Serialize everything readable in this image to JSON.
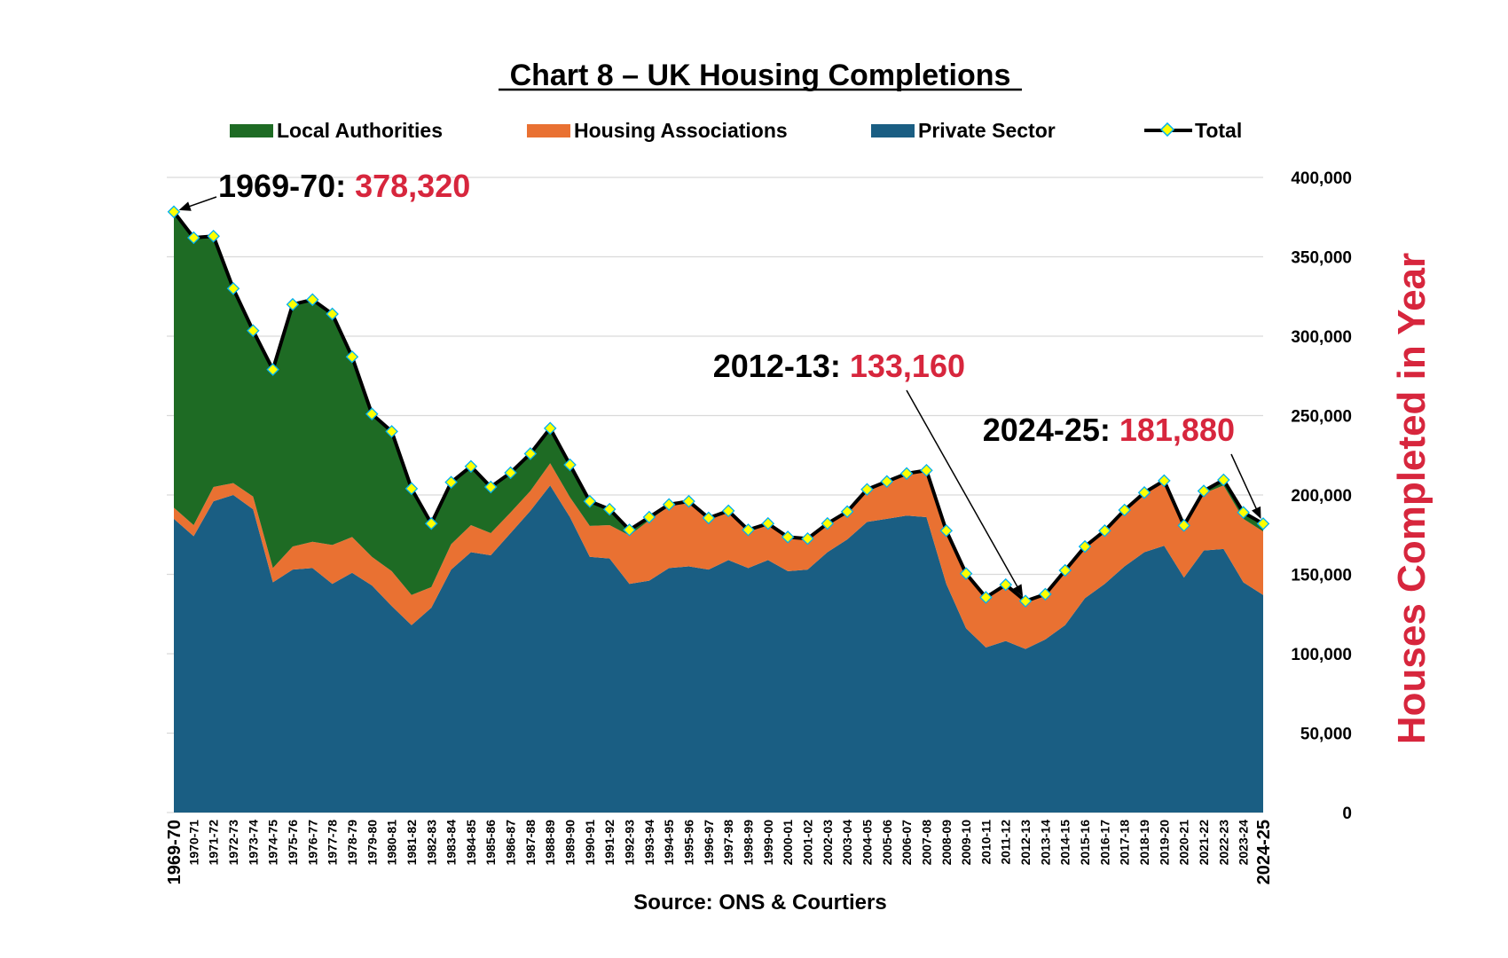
{
  "chart_data": {
    "type": "area",
    "title": "Chart 8 – UK Housing Completions",
    "source": "Source: ONS & Courtiers",
    "ylabel": "Houses Completed in Year",
    "ylim": [
      0,
      400000
    ],
    "yticks": [
      0,
      50000,
      100000,
      150000,
      200000,
      250000,
      300000,
      350000,
      400000
    ],
    "ytick_labels": [
      "0",
      "50,000",
      "100,000",
      "150,000",
      "200,000",
      "250,000",
      "300,000",
      "350,000",
      "400,000"
    ],
    "stacked": true,
    "grid": true,
    "legend_position": "top",
    "categories": [
      "1969-70",
      "1970-71",
      "1971-72",
      "1972-73",
      "1973-74",
      "1974-75",
      "1975-76",
      "1976-77",
      "1977-78",
      "1978-79",
      "1979-80",
      "1980-81",
      "1981-82",
      "1982-83",
      "1983-84",
      "1984-85",
      "1985-86",
      "1986-87",
      "1987-88",
      "1988-89",
      "1989-90",
      "1990-91",
      "1991-92",
      "1992-93",
      "1993-94",
      "1994-95",
      "1995-96",
      "1996-97",
      "1997-98",
      "1998-99",
      "1999-00",
      "2000-01",
      "2001-02",
      "2002-03",
      "2003-04",
      "2004-05",
      "2005-06",
      "2006-07",
      "2007-08",
      "2008-09",
      "2009-10",
      "2010-11",
      "2011-12",
      "2012-13",
      "2013-14",
      "2014-15",
      "2015-16",
      "2016-17",
      "2017-18",
      "2018-19",
      "2019-20",
      "2020-21",
      "2021-22",
      "2022-23",
      "2023-24",
      "2024-25"
    ],
    "series": [
      {
        "name": "Private Sector",
        "color": "#1a5e83",
        "values": [
          185000,
          174000,
          196000,
          200000,
          191000,
          145000,
          153000,
          154000,
          144000,
          151000,
          143000,
          130000,
          118000,
          129000,
          153000,
          164000,
          162000,
          176000,
          190000,
          206000,
          186000,
          161000,
          160000,
          144000,
          146000,
          154000,
          155000,
          153000,
          159000,
          154000,
          159000,
          152000,
          153000,
          164000,
          172000,
          183000,
          185000,
          187000,
          186000,
          144000,
          116000,
          104000,
          108000,
          103000,
          109000,
          118000,
          135000,
          144000,
          155000,
          164000,
          168000,
          148000,
          165000,
          166000,
          145000,
          137000
        ]
      },
      {
        "name": "Housing Associations",
        "color": "#e97132",
        "values": [
          7000,
          7000,
          9000,
          7500,
          8000,
          9000,
          14500,
          16500,
          24500,
          22500,
          18000,
          22000,
          19000,
          13000,
          16000,
          17000,
          14000,
          13000,
          12500,
          14000,
          12500,
          19500,
          21000,
          30500,
          38000,
          39000,
          40000,
          31500,
          30000,
          23500,
          22500,
          21000,
          19000,
          17500,
          17000,
          20000,
          23000,
          26000,
          29000,
          33000,
          34000,
          31000,
          35000,
          29000,
          28000,
          34000,
          32000,
          33000,
          35000,
          37000,
          40000,
          32000,
          36000,
          40000,
          40000,
          40000
        ]
      },
      {
        "name": "Local Authorities",
        "color": "#1e6b24",
        "values": [
          186320,
          181000,
          158000,
          122500,
          104500,
          125000,
          152500,
          152500,
          145500,
          113500,
          90000,
          88000,
          67000,
          40000,
          39000,
          37000,
          29000,
          25000,
          23500,
          22000,
          20500,
          15500,
          10000,
          3500,
          2000,
          1000,
          1000,
          1000,
          1000,
          500,
          500,
          500,
          500,
          500,
          500,
          500,
          500,
          500,
          500,
          500,
          500,
          500,
          500,
          1160,
          500,
          500,
          500,
          500,
          500,
          500,
          1000,
          800,
          1500,
          3500,
          4000,
          4880
        ]
      }
    ],
    "total": {
      "name": "Total",
      "line_color": "#000000",
      "marker_color": "#ffff00",
      "marker_edge": "#00b0f0",
      "values": [
        378320,
        362000,
        363000,
        330000,
        303500,
        279000,
        320000,
        323000,
        314000,
        287000,
        251000,
        240000,
        204000,
        182000,
        208000,
        218000,
        205000,
        214000,
        226000,
        242000,
        219000,
        196000,
        191000,
        178000,
        186000,
        194000,
        196000,
        185500,
        190000,
        178000,
        182000,
        173500,
        172500,
        182000,
        189500,
        203500,
        208500,
        213500,
        215500,
        177500,
        150500,
        135500,
        143500,
        133160,
        137500,
        152500,
        167500,
        177500,
        190500,
        201500,
        209000,
        180800,
        202500,
        209500,
        189000,
        181880
      ]
    },
    "annotations": [
      {
        "label": "1969-70: ",
        "value": "378,320",
        "category": "1969-70"
      },
      {
        "label": "2012-13: ",
        "value": "133,160",
        "category": "2012-13"
      },
      {
        "label": "2024-25: ",
        "value": "181,880",
        "category": "2024-25"
      }
    ]
  },
  "colors": {
    "annotation_value": "#d7263d",
    "ylabel": "#d7263d",
    "grid": "#d9d9d9"
  }
}
